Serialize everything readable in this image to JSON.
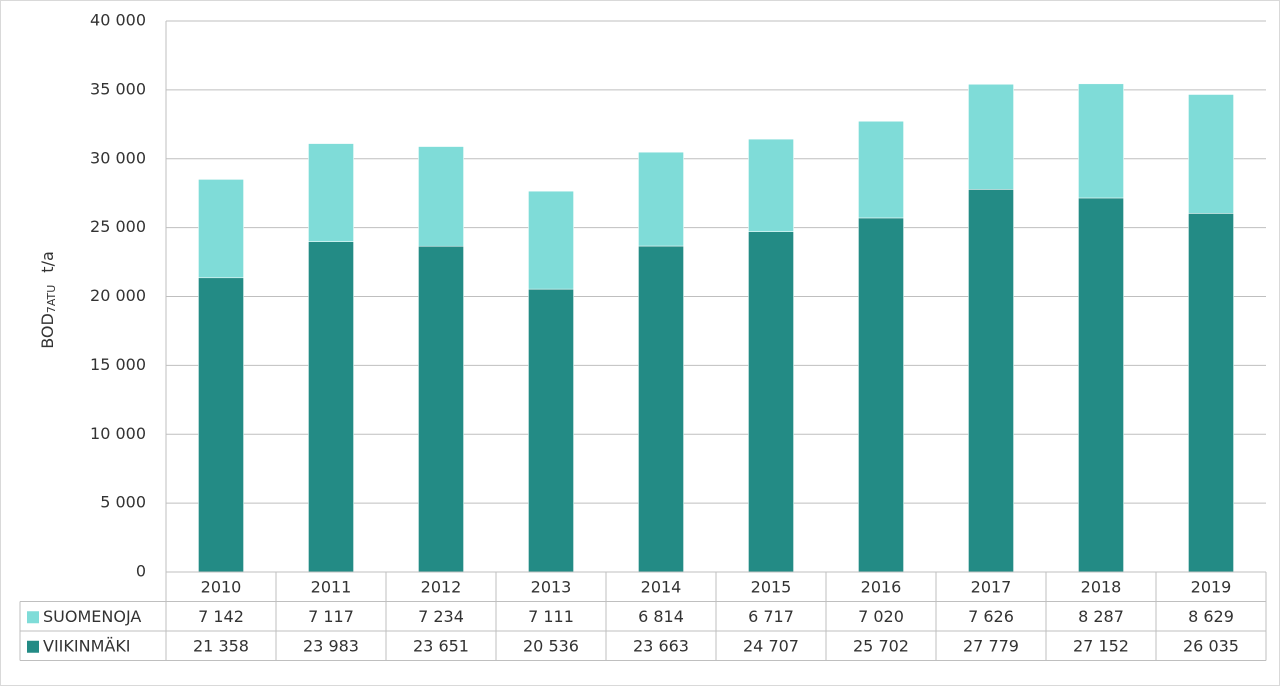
{
  "chart_data": {
    "type": "stacked_bar",
    "y_label": "BOD",
    "y_label_subscript": "7ATU",
    "y_label_unit": "t/a",
    "categories": [
      "2010",
      "2011",
      "2012",
      "2013",
      "2014",
      "2015",
      "2016",
      "2017",
      "2018",
      "2019"
    ],
    "series": [
      {
        "name": "VIIKINMÄKI",
        "color": "#238b85",
        "values": [
          21358,
          23983,
          23651,
          20536,
          23663,
          24707,
          25702,
          27779,
          27152,
          26035
        ],
        "value_labels": [
          "21 358",
          "23 983",
          "23 651",
          "20 536",
          "23 663",
          "24 707",
          "25 702",
          "27 779",
          "27 152",
          "26 035"
        ]
      },
      {
        "name": "SUOMENOJA",
        "color": "#7fdcd8",
        "values": [
          7142,
          7117,
          7234,
          7111,
          6814,
          6717,
          7020,
          7626,
          8287,
          8629
        ],
        "value_labels": [
          "7 142",
          "7 117",
          "7 234",
          "7 111",
          "6 814",
          "6 717",
          "7 020",
          "7 626",
          "8 287",
          "8 629"
        ]
      }
    ],
    "ylim": [
      0,
      40000
    ],
    "yticks": [
      0,
      {
        "value": 5000,
        "label": "5 000"
      },
      {
        "value": 10000,
        "label": "10 000"
      },
      {
        "value": 15000,
        "label": "15 000"
      },
      {
        "value": 20000,
        "label": "20 000"
      },
      {
        "value": 25000,
        "label": "25 000"
      },
      {
        "value": 30000,
        "label": "30 000"
      },
      {
        "value": 35000,
        "label": "35 000"
      },
      {
        "value": 40000,
        "label": "40 000"
      }
    ],
    "grid": true
  }
}
